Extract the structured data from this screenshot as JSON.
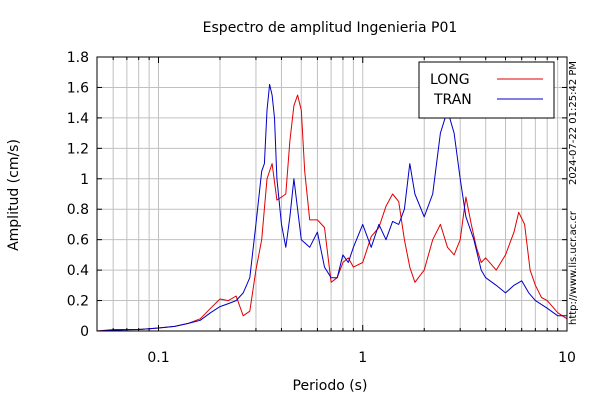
{
  "chart_data": {
    "type": "line",
    "title": "Espectro de amplitud Ingenieria P01",
    "xlabel": "Periodo (s)",
    "ylabel": "Amplitud (cm/s)",
    "xscale": "log",
    "xlim": [
      0.05,
      10
    ],
    "ylim": [
      0,
      1.8
    ],
    "grid": true,
    "legend_position": "top-right",
    "y_ticks": [
      {
        "v": 0,
        "label": "0"
      },
      {
        "v": 0.2,
        "label": "0.2"
      },
      {
        "v": 0.4,
        "label": "0.4"
      },
      {
        "v": 0.6,
        "label": "0.6"
      },
      {
        "v": 0.8,
        "label": "0.8"
      },
      {
        "v": 1.0,
        "label": "1"
      },
      {
        "v": 1.2,
        "label": "1.2"
      },
      {
        "v": 1.4,
        "label": "1.4"
      },
      {
        "v": 1.6,
        "label": "1.6"
      },
      {
        "v": 1.8,
        "label": "1.8"
      }
    ],
    "x_ticks": [
      {
        "v": 0.1,
        "label": "0.1"
      },
      {
        "v": 1,
        "label": "1"
      },
      {
        "v": 10,
        "label": "10"
      }
    ],
    "x_minor": [
      0.05,
      0.06,
      0.07,
      0.08,
      0.09,
      0.2,
      0.3,
      0.4,
      0.5,
      0.6,
      0.7,
      0.8,
      0.9,
      2,
      3,
      4,
      5,
      6,
      7,
      8,
      9
    ],
    "series": [
      {
        "name": "LONG",
        "color": "#e00000",
        "points": [
          [
            0.05,
            0.0
          ],
          [
            0.06,
            0.01
          ],
          [
            0.07,
            0.01
          ],
          [
            0.08,
            0.01
          ],
          [
            0.09,
            0.015
          ],
          [
            0.1,
            0.02
          ],
          [
            0.12,
            0.03
          ],
          [
            0.14,
            0.05
          ],
          [
            0.16,
            0.08
          ],
          [
            0.18,
            0.15
          ],
          [
            0.2,
            0.21
          ],
          [
            0.22,
            0.2
          ],
          [
            0.24,
            0.23
          ],
          [
            0.26,
            0.1
          ],
          [
            0.28,
            0.13
          ],
          [
            0.3,
            0.4
          ],
          [
            0.32,
            0.6
          ],
          [
            0.34,
            1.0
          ],
          [
            0.36,
            1.1
          ],
          [
            0.38,
            0.86
          ],
          [
            0.4,
            0.88
          ],
          [
            0.42,
            0.9
          ],
          [
            0.44,
            1.25
          ],
          [
            0.46,
            1.48
          ],
          [
            0.48,
            1.55
          ],
          [
            0.5,
            1.45
          ],
          [
            0.52,
            1.05
          ],
          [
            0.55,
            0.73
          ],
          [
            0.6,
            0.73
          ],
          [
            0.65,
            0.68
          ],
          [
            0.7,
            0.32
          ],
          [
            0.75,
            0.35
          ],
          [
            0.8,
            0.45
          ],
          [
            0.85,
            0.48
          ],
          [
            0.9,
            0.42
          ],
          [
            1.0,
            0.45
          ],
          [
            1.1,
            0.62
          ],
          [
            1.2,
            0.68
          ],
          [
            1.3,
            0.82
          ],
          [
            1.4,
            0.9
          ],
          [
            1.5,
            0.85
          ],
          [
            1.6,
            0.6
          ],
          [
            1.7,
            0.42
          ],
          [
            1.8,
            0.32
          ],
          [
            2.0,
            0.4
          ],
          [
            2.2,
            0.6
          ],
          [
            2.4,
            0.7
          ],
          [
            2.6,
            0.55
          ],
          [
            2.8,
            0.5
          ],
          [
            3.0,
            0.6
          ],
          [
            3.2,
            0.88
          ],
          [
            3.4,
            0.7
          ],
          [
            3.6,
            0.55
          ],
          [
            3.8,
            0.45
          ],
          [
            4.0,
            0.48
          ],
          [
            4.5,
            0.4
          ],
          [
            5.0,
            0.5
          ],
          [
            5.5,
            0.65
          ],
          [
            5.8,
            0.78
          ],
          [
            6.2,
            0.7
          ],
          [
            6.6,
            0.4
          ],
          [
            7.0,
            0.3
          ],
          [
            7.5,
            0.22
          ],
          [
            8.0,
            0.2
          ],
          [
            9.0,
            0.12
          ],
          [
            10.0,
            0.08
          ]
        ]
      },
      {
        "name": "TRAN",
        "color": "#0000c8",
        "points": [
          [
            0.05,
            0.0
          ],
          [
            0.06,
            0.005
          ],
          [
            0.07,
            0.008
          ],
          [
            0.08,
            0.01
          ],
          [
            0.09,
            0.015
          ],
          [
            0.1,
            0.02
          ],
          [
            0.12,
            0.03
          ],
          [
            0.14,
            0.05
          ],
          [
            0.16,
            0.07
          ],
          [
            0.18,
            0.12
          ],
          [
            0.2,
            0.16
          ],
          [
            0.22,
            0.18
          ],
          [
            0.24,
            0.2
          ],
          [
            0.26,
            0.25
          ],
          [
            0.28,
            0.35
          ],
          [
            0.3,
            0.7
          ],
          [
            0.32,
            1.05
          ],
          [
            0.33,
            1.1
          ],
          [
            0.34,
            1.45
          ],
          [
            0.35,
            1.62
          ],
          [
            0.36,
            1.55
          ],
          [
            0.37,
            1.4
          ],
          [
            0.38,
            1.0
          ],
          [
            0.4,
            0.7
          ],
          [
            0.42,
            0.55
          ],
          [
            0.44,
            0.75
          ],
          [
            0.46,
            1.0
          ],
          [
            0.48,
            0.8
          ],
          [
            0.5,
            0.6
          ],
          [
            0.55,
            0.55
          ],
          [
            0.6,
            0.65
          ],
          [
            0.65,
            0.42
          ],
          [
            0.7,
            0.35
          ],
          [
            0.75,
            0.35
          ],
          [
            0.8,
            0.5
          ],
          [
            0.85,
            0.45
          ],
          [
            0.9,
            0.55
          ],
          [
            1.0,
            0.7
          ],
          [
            1.1,
            0.55
          ],
          [
            1.2,
            0.7
          ],
          [
            1.3,
            0.6
          ],
          [
            1.4,
            0.72
          ],
          [
            1.5,
            0.7
          ],
          [
            1.6,
            0.8
          ],
          [
            1.7,
            1.1
          ],
          [
            1.8,
            0.9
          ],
          [
            2.0,
            0.75
          ],
          [
            2.2,
            0.9
          ],
          [
            2.4,
            1.3
          ],
          [
            2.6,
            1.45
          ],
          [
            2.8,
            1.3
          ],
          [
            3.0,
            1.0
          ],
          [
            3.2,
            0.75
          ],
          [
            3.5,
            0.6
          ],
          [
            3.8,
            0.4
          ],
          [
            4.0,
            0.35
          ],
          [
            4.5,
            0.3
          ],
          [
            5.0,
            0.25
          ],
          [
            5.5,
            0.3
          ],
          [
            6.0,
            0.33
          ],
          [
            6.5,
            0.25
          ],
          [
            7.0,
            0.2
          ],
          [
            8.0,
            0.15
          ],
          [
            9.0,
            0.1
          ],
          [
            10.0,
            0.1
          ]
        ]
      }
    ]
  },
  "side_labels": {
    "timestamp": "2024-07-22 01:25:42 PM",
    "url": "http://www.lis.ucr.ac.cr"
  }
}
